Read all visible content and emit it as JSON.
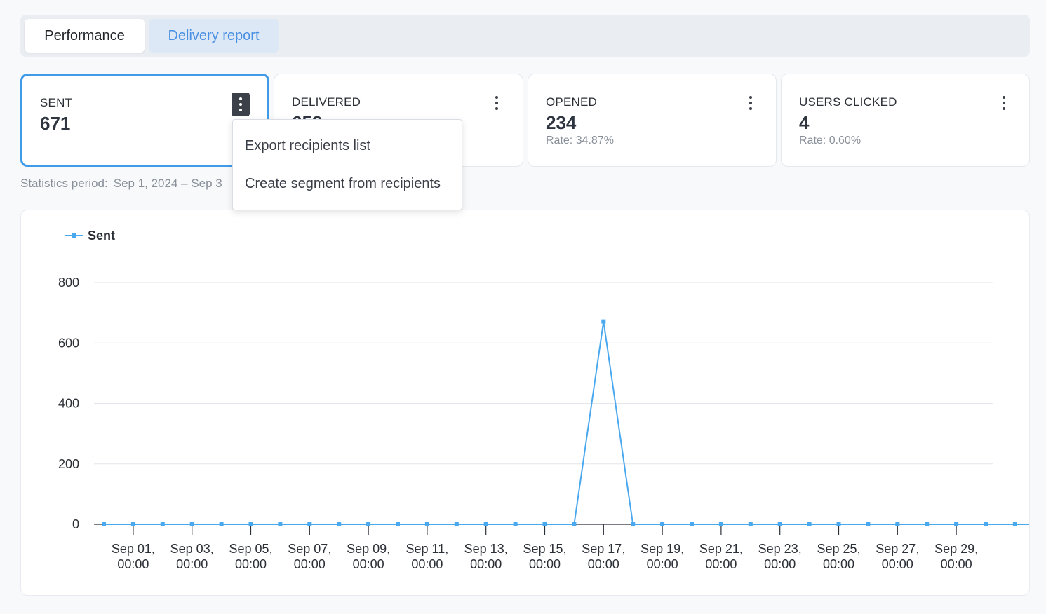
{
  "tabs": [
    {
      "label": "Performance",
      "active": true
    },
    {
      "label": "Delivery report",
      "active": false
    }
  ],
  "cards": [
    {
      "label": "SENT",
      "value": "671",
      "rate": ""
    },
    {
      "label": "DELIVERED",
      "value": "652",
      "rate": ""
    },
    {
      "label": "OPENED",
      "value": "234",
      "rate": "Rate: 34.87%"
    },
    {
      "label": "USERS CLICKED",
      "value": "4",
      "rate": "Rate: 0.60%"
    }
  ],
  "period": {
    "label": "Statistics period:",
    "value": "Sep 1, 2024 – Sep 3"
  },
  "menu": {
    "items": [
      "Export recipients list",
      "Create segment from recipients"
    ]
  },
  "colors": {
    "accent": "#3f9ae8",
    "series": "#4aa8ee",
    "tab_link": "#4a90e2"
  },
  "chart_data": {
    "type": "line",
    "legend": {
      "position": "top-left"
    },
    "series": [
      {
        "name": "Sent",
        "values": [
          0,
          0,
          0,
          0,
          0,
          0,
          0,
          0,
          0,
          0,
          0,
          0,
          0,
          0,
          0,
          0,
          0,
          671,
          0,
          0,
          0,
          0,
          0,
          0,
          0,
          0,
          0,
          0,
          0,
          0,
          0,
          0,
          0
        ]
      }
    ],
    "x_tick_labels": [
      [
        "Sep 01,",
        "00:00"
      ],
      [
        "Sep 03,",
        "00:00"
      ],
      [
        "Sep 05,",
        "00:00"
      ],
      [
        "Sep 07,",
        "00:00"
      ],
      [
        "Sep 09,",
        "00:00"
      ],
      [
        "Sep 11,",
        "00:00"
      ],
      [
        "Sep 13,",
        "00:00"
      ],
      [
        "Sep 15,",
        "00:00"
      ],
      [
        "Sep 17,",
        "00:00"
      ],
      [
        "Sep 19,",
        "00:00"
      ],
      [
        "Sep 21,",
        "00:00"
      ],
      [
        "Sep 23,",
        "00:00"
      ],
      [
        "Sep 25,",
        "00:00"
      ],
      [
        "Sep 27,",
        "00:00"
      ],
      [
        "Sep 29,",
        "00:00"
      ]
    ],
    "y_ticks": [
      0,
      200,
      400,
      600,
      800
    ],
    "ylim": [
      0,
      800
    ],
    "grid": true
  }
}
